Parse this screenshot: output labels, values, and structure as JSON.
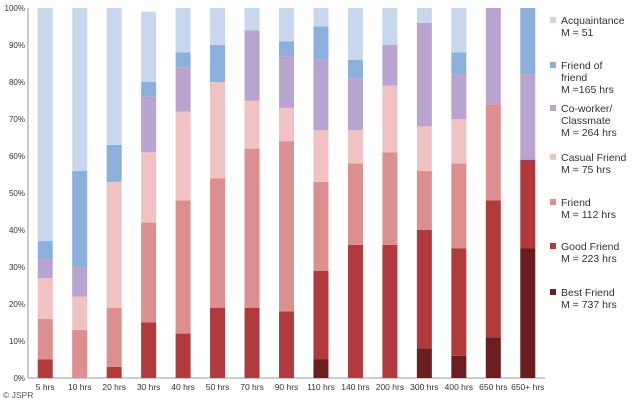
{
  "chart_data": {
    "type": "bar",
    "stacked": true,
    "normalized": true,
    "categories": [
      "5 hrs",
      "10 hrs",
      "20 hrs",
      "30 hrs",
      "40 hrs",
      "50 hrs",
      "70 hrs",
      "90 hrs",
      "110 hrs",
      "140 hrs",
      "200 hrs",
      "300 hrs",
      "400 hrs",
      "650 hrs",
      "650+ hrs"
    ],
    "series": [
      {
        "name": "Best Friend",
        "color": "#6b1e1e",
        "values": [
          0,
          0,
          0,
          0,
          0,
          0,
          0,
          0,
          5,
          0,
          0,
          8,
          6,
          11,
          35
        ]
      },
      {
        "name": "Good Friend",
        "color": "#b03a3c",
        "values": [
          5,
          0,
          3,
          15,
          12,
          19,
          19,
          18,
          24,
          36,
          36,
          32,
          29,
          37,
          24
        ]
      },
      {
        "name": "Friend",
        "color": "#dc8f8f",
        "values": [
          11,
          13,
          16,
          27,
          36,
          35,
          43,
          46,
          24,
          22,
          25,
          16,
          23,
          26,
          0
        ]
      },
      {
        "name": "Casual Friend",
        "color": "#f0c2c2",
        "values": [
          11,
          9,
          34,
          19,
          24,
          26,
          13,
          9,
          14,
          9,
          18,
          12,
          12,
          0,
          0
        ]
      },
      {
        "name": "Co-worker/ Classmate",
        "color": "#b8a4cf",
        "values": [
          5,
          8,
          0,
          15,
          12,
          0,
          19,
          14,
          19,
          14,
          11,
          28,
          12,
          26,
          23
        ]
      },
      {
        "name": "Friend of friend",
        "color": "#8cb0dc",
        "values": [
          5,
          26,
          10,
          4,
          4,
          10,
          0,
          4,
          9,
          5,
          0,
          0,
          6,
          0,
          18
        ]
      },
      {
        "name": "Acquaintance",
        "color": "#c6d7ee",
        "values": [
          63,
          44,
          37,
          19,
          12,
          10,
          6,
          9,
          5,
          14,
          10,
          4,
          12,
          0,
          0
        ]
      }
    ],
    "legend": [
      {
        "name": "Acquaintance",
        "stat": "M = 51",
        "color": "#c6d7ee"
      },
      {
        "name": "Friend of friend",
        "stat": "M =165 hrs",
        "color": "#8cb0dc"
      },
      {
        "name": "Co-worker/ Classmate",
        "stat": "M = 264 hrs",
        "color": "#b8a4cf"
      },
      {
        "name": "Casual Friend",
        "stat": "M = 75 hrs",
        "color": "#f0c2c2"
      },
      {
        "name": "Friend",
        "stat": "M = 112 hrs",
        "color": "#dc8f8f"
      },
      {
        "name": "Good Friend",
        "stat": "M = 223 hrs",
        "color": "#b03a3c"
      },
      {
        "name": "Best Friend",
        "stat": "M = 737 hrs",
        "color": "#6b1e1e"
      }
    ],
    "legend_lines": [
      [
        "Acquaintance",
        "M = 51"
      ],
      [
        "Friend of",
        "friend",
        "M =165 hrs"
      ],
      [
        "Co-worker/",
        "Classmate",
        "M = 264 hrs"
      ],
      [
        "Casual Friend",
        "M = 75 hrs"
      ],
      [
        "Friend",
        "M = 112 hrs"
      ],
      [
        "Good Friend",
        "M = 223 hrs"
      ],
      [
        "Best Friend",
        "M = 737 hrs"
      ]
    ],
    "y_ticks": [
      "0%",
      "10%",
      "20%",
      "30%",
      "40%",
      "50%",
      "60%",
      "70%",
      "80%",
      "90%",
      "100%"
    ],
    "ylim": [
      0,
      100
    ],
    "legend_position": "right",
    "grid": false
  },
  "credit": "© JSPR"
}
